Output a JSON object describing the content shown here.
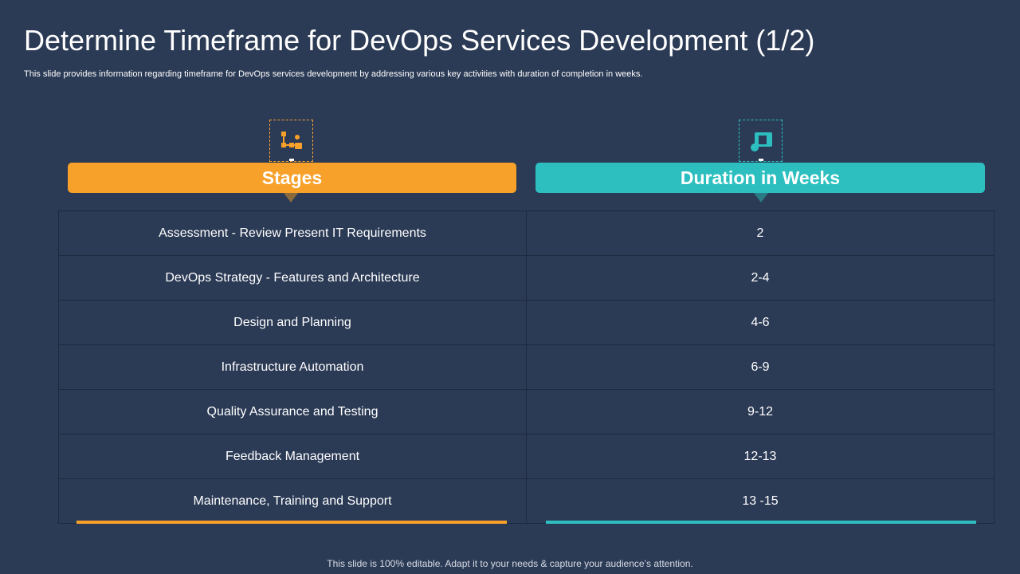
{
  "header": {
    "title": "Determine Timeframe for DevOps Services Development (1/2)",
    "subtitle": "This slide provides information regarding timeframe for DevOps services development by addressing various key activities with duration of completion in weeks."
  },
  "table": {
    "columns": [
      "Stages",
      "Duration in Weeks"
    ],
    "rows": [
      [
        "Assessment  - Review Present IT Requirements",
        "2"
      ],
      [
        "DevOps Strategy - Features and Architecture",
        "2-4"
      ],
      [
        "Design and Planning",
        "4-6"
      ],
      [
        "Infrastructure  Automation",
        "6-9"
      ],
      [
        "Quality Assurance and Testing",
        "9-12"
      ],
      [
        "Feedback Management",
        "12-13"
      ],
      [
        "Maintenance, Training and Support",
        "13 -15"
      ]
    ]
  },
  "footer": {
    "note": "This slide is 100% editable. Adapt it to your needs & capture your audience’s attention."
  }
}
